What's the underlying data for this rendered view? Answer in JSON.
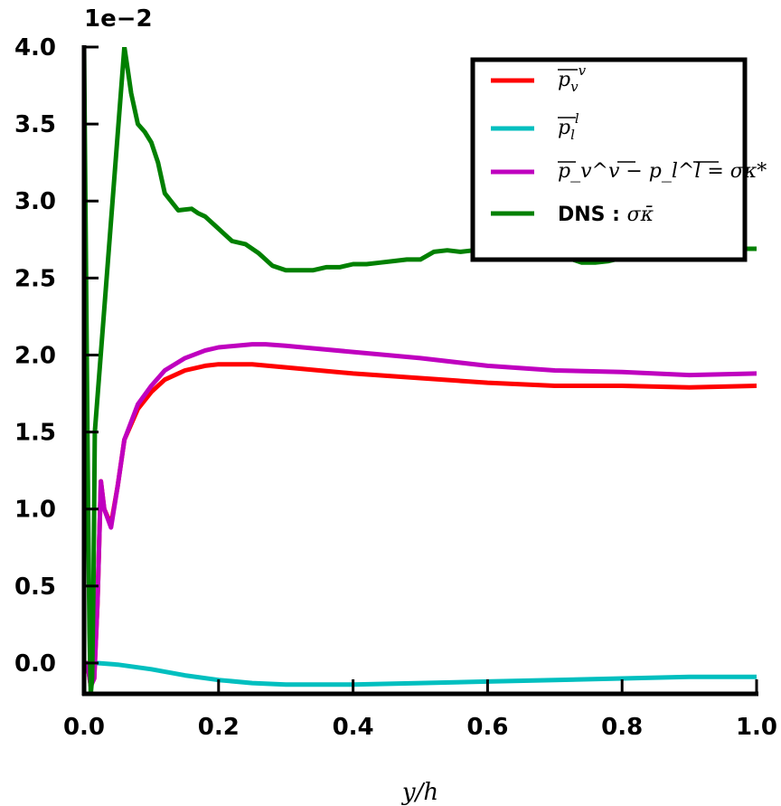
{
  "chart_data": {
    "type": "line",
    "xlabel": "y/h",
    "ylabel": "",
    "y_multiplier_label": "1e−2",
    "xlim": [
      0.0,
      1.0
    ],
    "ylim": [
      -0.2,
      4.0
    ],
    "xticks": [
      "0.0",
      "0.2",
      "0.4",
      "0.6",
      "0.8",
      "1.0"
    ],
    "yticks": [
      "0.0",
      "0.5",
      "1.0",
      "1.5",
      "2.0",
      "2.5",
      "3.0",
      "3.5",
      "4.0"
    ],
    "grid": false,
    "legend_position": "top-right",
    "series": [
      {
        "name": "p_v^v (overline)",
        "label_main": "p",
        "label_sub": "v",
        "label_sup": "v",
        "color": "#ff0000",
        "x": [
          0.005,
          0.01,
          0.015,
          0.02,
          0.025,
          0.03,
          0.04,
          0.05,
          0.06,
          0.08,
          0.1,
          0.12,
          0.15,
          0.18,
          0.2,
          0.25,
          0.3,
          0.4,
          0.5,
          0.6,
          0.7,
          0.8,
          0.9,
          1.0
        ],
        "y": [
          0.0,
          -0.15,
          -0.1,
          0.4,
          1.18,
          1.0,
          0.9,
          1.15,
          1.45,
          1.65,
          1.76,
          1.84,
          1.9,
          1.93,
          1.94,
          1.94,
          1.92,
          1.88,
          1.85,
          1.82,
          1.8,
          1.8,
          1.79,
          1.8
        ]
      },
      {
        "name": "p_l^l (overline)",
        "label_main": "p",
        "label_sub": "l",
        "label_sup": "l",
        "color": "#00bfbf",
        "x": [
          0.0,
          0.02,
          0.05,
          0.1,
          0.15,
          0.2,
          0.25,
          0.3,
          0.35,
          0.4,
          0.5,
          0.6,
          0.7,
          0.8,
          0.9,
          1.0
        ],
        "y": [
          0.0,
          0.0,
          -0.01,
          -0.04,
          -0.08,
          -0.11,
          -0.13,
          -0.14,
          -0.14,
          -0.14,
          -0.13,
          -0.12,
          -0.11,
          -0.1,
          -0.09,
          -0.09
        ]
      },
      {
        "name": "p_v^v - p_l^l = sigma kappa*",
        "label_text": "p_v^v − p_l^l = σκ*",
        "color": "#bf00bf",
        "x": [
          0.005,
          0.01,
          0.015,
          0.02,
          0.025,
          0.03,
          0.04,
          0.05,
          0.06,
          0.08,
          0.1,
          0.12,
          0.15,
          0.18,
          0.2,
          0.25,
          0.27,
          0.3,
          0.4,
          0.5,
          0.6,
          0.7,
          0.8,
          0.9,
          1.0
        ],
        "y": [
          0.0,
          -0.15,
          -0.1,
          0.4,
          1.18,
          1.0,
          0.88,
          1.15,
          1.45,
          1.68,
          1.8,
          1.9,
          1.98,
          2.03,
          2.05,
          2.07,
          2.07,
          2.06,
          2.02,
          1.98,
          1.93,
          1.9,
          1.89,
          1.87,
          1.88
        ]
      },
      {
        "name": "DNS : sigma kappa (overline)",
        "label_bold": "DNS :",
        "label_math": "σκ̄",
        "color": "#008000",
        "x": [
          0.0,
          0.002,
          0.004,
          0.006,
          0.008,
          0.01,
          0.012,
          0.014,
          0.016,
          0.06,
          0.065,
          0.07,
          0.08,
          0.09,
          0.1,
          0.11,
          0.12,
          0.14,
          0.16,
          0.17,
          0.18,
          0.2,
          0.22,
          0.24,
          0.26,
          0.28,
          0.3,
          0.32,
          0.34,
          0.36,
          0.38,
          0.4,
          0.42,
          0.44,
          0.46,
          0.48,
          0.5,
          0.52,
          0.54,
          0.56,
          0.58,
          0.6,
          0.62,
          0.64,
          0.66,
          0.68,
          0.7,
          0.72,
          0.74,
          0.76,
          0.78,
          0.8,
          0.82,
          0.84,
          0.86,
          0.88,
          0.9,
          0.92,
          0.94,
          0.96,
          0.98,
          1.0
        ],
        "y": [
          4.0,
          3.0,
          2.0,
          1.0,
          0.2,
          -0.2,
          -0.1,
          0.5,
          1.5,
          4.0,
          3.85,
          3.7,
          3.5,
          3.45,
          3.38,
          3.25,
          3.05,
          2.94,
          2.95,
          2.92,
          2.9,
          2.82,
          2.74,
          2.72,
          2.66,
          2.58,
          2.55,
          2.55,
          2.55,
          2.57,
          2.57,
          2.59,
          2.59,
          2.6,
          2.61,
          2.62,
          2.62,
          2.67,
          2.68,
          2.67,
          2.68,
          2.67,
          2.67,
          2.65,
          2.67,
          2.68,
          2.66,
          2.63,
          2.6,
          2.6,
          2.61,
          2.63,
          2.64,
          2.65,
          2.66,
          2.67,
          2.66,
          2.66,
          2.67,
          2.68,
          2.69,
          2.69
        ]
      }
    ]
  }
}
